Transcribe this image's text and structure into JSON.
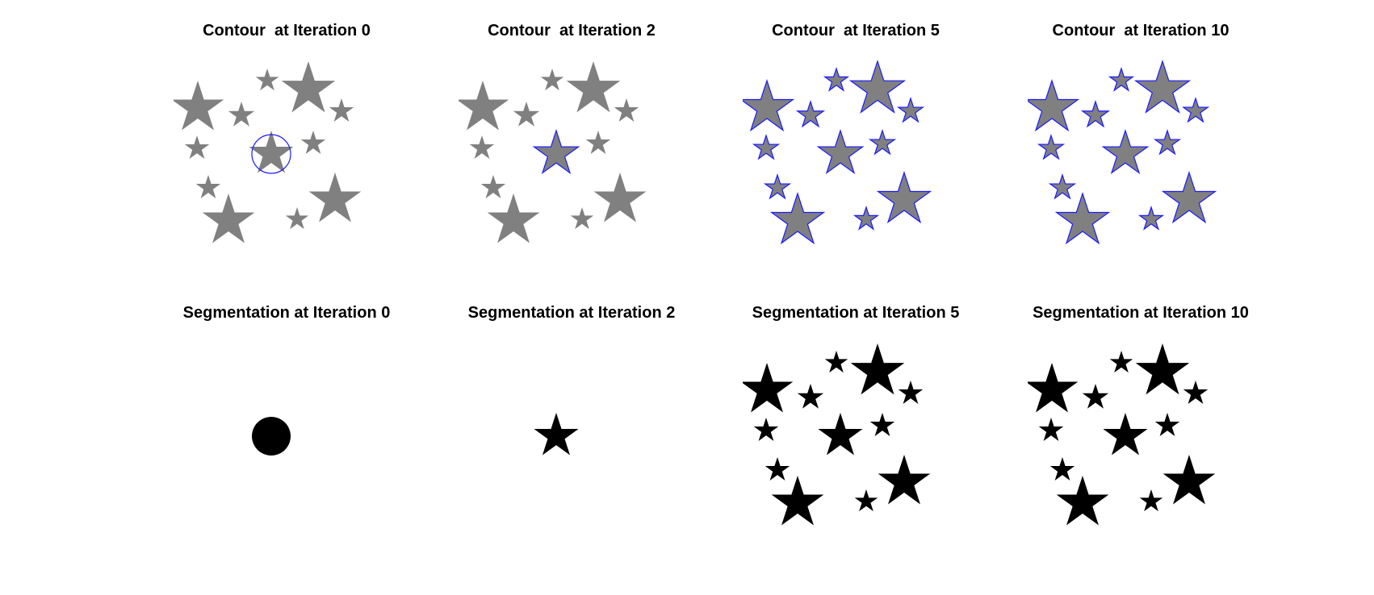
{
  "colors": {
    "star_fill": "#808080",
    "contour": "#1a1aff",
    "segmentation": "#000000",
    "background": "#ffffff"
  },
  "panels": [
    {
      "title": "Contour  at Iteration 0",
      "kind": "contour",
      "state": "circle"
    },
    {
      "title": "Contour  at Iteration 2",
      "kind": "contour",
      "state": "center-star"
    },
    {
      "title": "Contour  at Iteration 5",
      "kind": "contour",
      "state": "all-stars"
    },
    {
      "title": "Contour  at Iteration 10",
      "kind": "contour",
      "state": "all-stars"
    },
    {
      "title": "Segmentation at Iteration 0",
      "kind": "segmentation",
      "state": "circle"
    },
    {
      "title": "Segmentation at Iteration 2",
      "kind": "segmentation",
      "state": "center-star"
    },
    {
      "title": "Segmentation at Iteration 5",
      "kind": "segmentation",
      "state": "all-stars"
    },
    {
      "title": "Segmentation at Iteration 10",
      "kind": "segmentation",
      "state": "all-stars"
    }
  ]
}
